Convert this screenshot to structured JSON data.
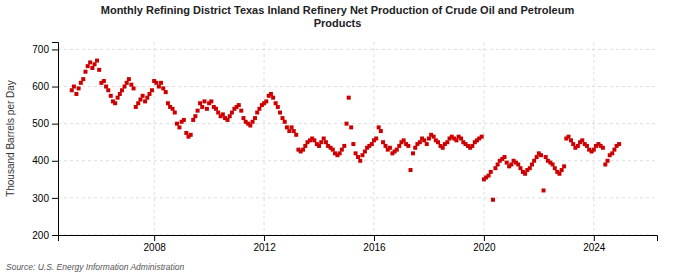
{
  "chart_data": {
    "type": "scatter",
    "title": "Monthly Refining District Texas Inland Refinery Net Production of Crude Oil and Petroleum\nProducts",
    "ylabel": "Thousand Barrels per Day",
    "annotations": [
      "Source: U.S. Energy Information Administration"
    ],
    "color": "#cc0000",
    "marker": "square",
    "grid": true,
    "xlim": [
      2004.5,
      2026.3
    ],
    "xticks": [
      2008,
      2012,
      2016,
      2020,
      2024
    ],
    "ylim": [
      200,
      720
    ],
    "yticks": [
      200,
      300,
      400,
      500,
      600,
      700
    ],
    "x": [
      2005.0,
      2005.08,
      2005.17,
      2005.25,
      2005.33,
      2005.42,
      2005.5,
      2005.58,
      2005.67,
      2005.75,
      2005.83,
      2005.92,
      2006.0,
      2006.08,
      2006.17,
      2006.25,
      2006.33,
      2006.42,
      2006.5,
      2006.58,
      2006.67,
      2006.75,
      2006.83,
      2006.92,
      2007.0,
      2007.08,
      2007.17,
      2007.25,
      2007.33,
      2007.42,
      2007.5,
      2007.58,
      2007.67,
      2007.75,
      2007.83,
      2007.92,
      2008.0,
      2008.08,
      2008.17,
      2008.25,
      2008.33,
      2008.42,
      2008.5,
      2008.58,
      2008.67,
      2008.75,
      2008.83,
      2008.92,
      2009.0,
      2009.08,
      2009.17,
      2009.25,
      2009.33,
      2009.42,
      2009.5,
      2009.58,
      2009.67,
      2009.75,
      2009.83,
      2009.92,
      2010.0,
      2010.08,
      2010.17,
      2010.25,
      2010.33,
      2010.42,
      2010.5,
      2010.58,
      2010.67,
      2010.75,
      2010.83,
      2010.92,
      2011.0,
      2011.08,
      2011.17,
      2011.25,
      2011.33,
      2011.42,
      2011.5,
      2011.58,
      2011.67,
      2011.75,
      2011.83,
      2011.92,
      2012.0,
      2012.08,
      2012.17,
      2012.25,
      2012.33,
      2012.42,
      2012.5,
      2012.58,
      2012.67,
      2012.75,
      2012.83,
      2012.92,
      2013.0,
      2013.08,
      2013.17,
      2013.25,
      2013.33,
      2013.42,
      2013.5,
      2013.58,
      2013.67,
      2013.75,
      2013.83,
      2013.92,
      2014.0,
      2014.08,
      2014.17,
      2014.25,
      2014.33,
      2014.42,
      2014.5,
      2014.58,
      2014.67,
      2014.75,
      2014.83,
      2014.92,
      2015.0,
      2015.08,
      2015.17,
      2015.25,
      2015.33,
      2015.42,
      2015.5,
      2015.58,
      2015.67,
      2015.75,
      2015.83,
      2015.92,
      2016.0,
      2016.08,
      2016.17,
      2016.25,
      2016.33,
      2016.42,
      2016.5,
      2016.58,
      2016.67,
      2016.75,
      2016.83,
      2016.92,
      2017.0,
      2017.08,
      2017.17,
      2017.25,
      2017.33,
      2017.42,
      2017.5,
      2017.58,
      2017.67,
      2017.75,
      2017.83,
      2017.92,
      2018.0,
      2018.08,
      2018.17,
      2018.25,
      2018.33,
      2018.42,
      2018.5,
      2018.58,
      2018.67,
      2018.75,
      2018.83,
      2018.92,
      2019.0,
      2019.08,
      2019.17,
      2019.25,
      2019.33,
      2019.42,
      2019.5,
      2019.58,
      2019.67,
      2019.75,
      2019.83,
      2019.92,
      2020.0,
      2020.08,
      2020.17,
      2020.25,
      2020.33,
      2020.42,
      2020.5,
      2020.58,
      2020.67,
      2020.75,
      2020.83,
      2020.92,
      2021.0,
      2021.08,
      2021.17,
      2021.25,
      2021.33,
      2021.42,
      2021.5,
      2021.58,
      2021.67,
      2021.75,
      2021.83,
      2021.92,
      2022.0,
      2022.08,
      2022.17,
      2022.25,
      2022.33,
      2022.42,
      2022.5,
      2022.58,
      2022.67,
      2022.75,
      2022.83,
      2022.92,
      2023.0,
      2023.08,
      2023.17,
      2023.25,
      2023.33,
      2023.42,
      2023.5,
      2023.58,
      2023.67,
      2023.75,
      2023.83,
      2023.92,
      2024.0,
      2024.08,
      2024.17,
      2024.25,
      2024.33,
      2024.42,
      2024.5,
      2024.58,
      2024.67,
      2024.75,
      2024.83,
      2024.92
    ],
    "values": [
      590,
      600,
      580,
      595,
      610,
      620,
      640,
      655,
      665,
      650,
      660,
      670,
      645,
      610,
      615,
      600,
      590,
      575,
      560,
      555,
      570,
      580,
      590,
      600,
      610,
      620,
      605,
      595,
      545,
      555,
      565,
      575,
      560,
      570,
      580,
      590,
      615,
      610,
      600,
      610,
      595,
      585,
      555,
      545,
      540,
      530,
      500,
      490,
      505,
      510,
      475,
      465,
      470,
      510,
      520,
      535,
      555,
      545,
      560,
      540,
      555,
      560,
      545,
      540,
      530,
      520,
      525,
      515,
      510,
      520,
      530,
      540,
      545,
      550,
      535,
      515,
      505,
      500,
      495,
      505,
      515,
      530,
      540,
      550,
      555,
      560,
      575,
      580,
      570,
      555,
      545,
      530,
      515,
      505,
      490,
      480,
      490,
      480,
      470,
      430,
      425,
      430,
      440,
      450,
      455,
      460,
      455,
      445,
      440,
      450,
      460,
      450,
      440,
      435,
      430,
      420,
      415,
      420,
      430,
      440,
      500,
      570,
      490,
      445,
      420,
      410,
      400,
      415,
      425,
      435,
      440,
      445,
      455,
      460,
      490,
      480,
      450,
      440,
      430,
      435,
      420,
      425,
      430,
      440,
      450,
      455,
      445,
      440,
      375,
      420,
      435,
      445,
      450,
      460,
      455,
      445,
      460,
      470,
      465,
      455,
      450,
      440,
      435,
      445,
      450,
      460,
      465,
      460,
      455,
      465,
      460,
      450,
      445,
      440,
      435,
      440,
      450,
      455,
      460,
      465,
      350,
      355,
      360,
      370,
      295,
      380,
      390,
      400,
      405,
      410,
      395,
      385,
      390,
      400,
      395,
      390,
      380,
      370,
      365,
      375,
      380,
      390,
      400,
      410,
      420,
      415,
      320,
      410,
      400,
      395,
      390,
      380,
      370,
      365,
      375,
      385,
      460,
      465,
      455,
      445,
      435,
      440,
      450,
      455,
      445,
      440,
      430,
      425,
      430,
      440,
      445,
      440,
      435,
      390,
      400,
      415,
      420,
      430,
      440,
      445
    ]
  }
}
